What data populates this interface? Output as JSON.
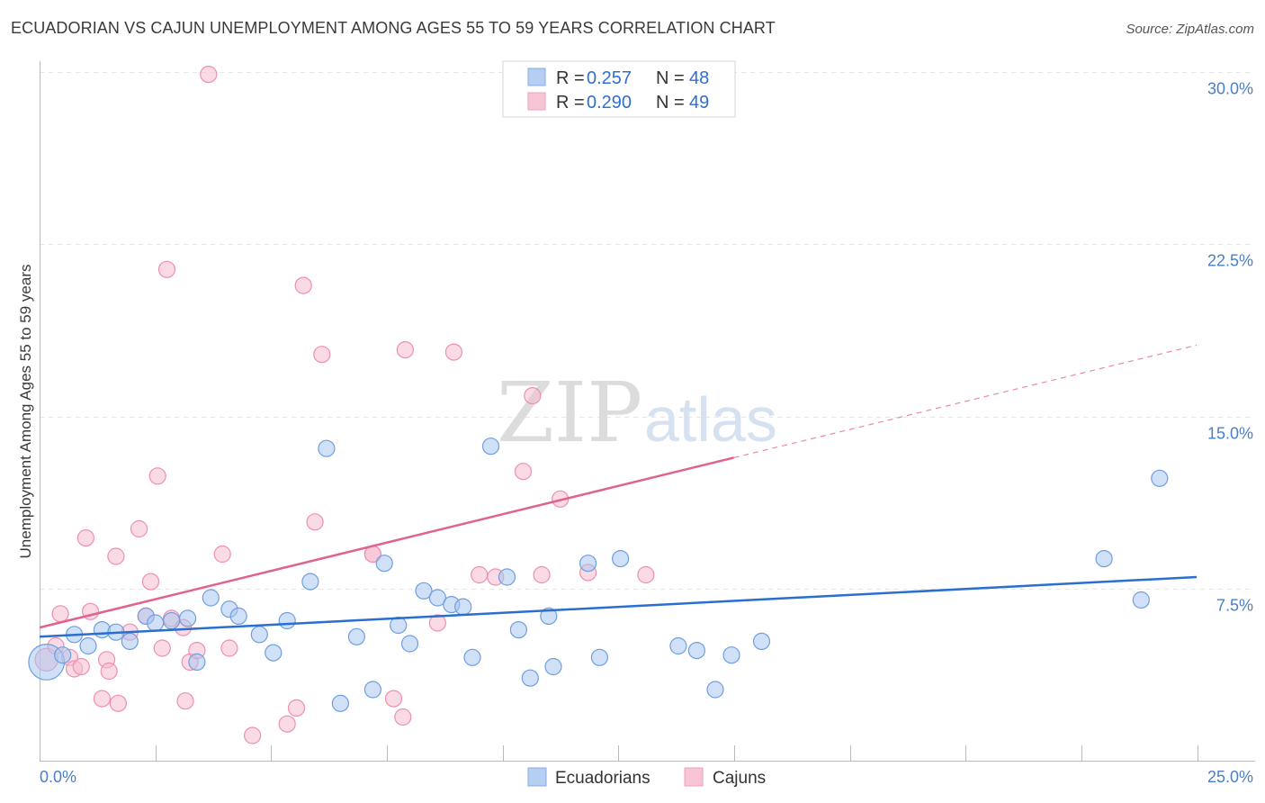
{
  "title": "ECUADORIAN VS CAJUN UNEMPLOYMENT AMONG AGES 55 TO 59 YEARS CORRELATION CHART",
  "source": "Source: ZipAtlas.com",
  "watermark": {
    "zip": "ZIP",
    "atlas": "atlas"
  },
  "legend": {
    "r_label": "R =",
    "n_label": "N =",
    "rows": [
      {
        "r": "0.257",
        "n": "48"
      },
      {
        "r": "0.290",
        "n": "49"
      }
    ]
  },
  "bottom_legend": [
    "Ecuadorians",
    "Cajuns"
  ],
  "colors": {
    "blue_fill": "#a9c6ef",
    "blue_stroke": "#6f9ee0",
    "blue_line": "#2a6fcf",
    "pink_fill": "#f6bcd0",
    "pink_stroke": "#ee8fb0",
    "pink_line": "#e0628f",
    "grid": "#e6e6e6",
    "axis_text": "#4a7fc8"
  },
  "chart_data": {
    "type": "scatter",
    "title": "ECUADORIAN VS CAJUN UNEMPLOYMENT AMONG AGES 55 TO 59 YEARS CORRELATION CHART",
    "xlabel": "",
    "ylabel": "Unemployment Among Ages 55 to 59 years",
    "xlim": [
      0,
      25
    ],
    "ylim": [
      0,
      31
    ],
    "x_tick_labels": [
      "0.0%",
      "25.0%"
    ],
    "y_ticks": [
      7.5,
      15.0,
      22.5,
      30.0
    ],
    "y_tick_labels": [
      "7.5%",
      "15.0%",
      "22.5%",
      "30.0%"
    ],
    "series": [
      {
        "name": "Ecuadorians",
        "r": 0.257,
        "n": 48,
        "trend": {
          "x": [
            0,
            25
          ],
          "y": [
            5.4,
            8.0
          ],
          "dashed_from": null
        },
        "points": [
          [
            0.15,
            4.3,
            2.2
          ],
          [
            0.5,
            4.6,
            1
          ],
          [
            0.75,
            5.5,
            1
          ],
          [
            1.05,
            5.0,
            1
          ],
          [
            1.35,
            5.7,
            1
          ],
          [
            1.65,
            5.6,
            1
          ],
          [
            1.95,
            5.2,
            1
          ],
          [
            2.3,
            6.3,
            1
          ],
          [
            2.5,
            6.0,
            1
          ],
          [
            2.85,
            6.1,
            1
          ],
          [
            3.2,
            6.2,
            1
          ],
          [
            3.4,
            4.3,
            1
          ],
          [
            3.7,
            7.1,
            1
          ],
          [
            4.1,
            6.6,
            1
          ],
          [
            4.3,
            6.3,
            1
          ],
          [
            4.75,
            5.5,
            1
          ],
          [
            5.05,
            4.7,
            1
          ],
          [
            5.35,
            6.1,
            1
          ],
          [
            5.85,
            7.8,
            1
          ],
          [
            6.2,
            13.6,
            1
          ],
          [
            6.5,
            2.5,
            1
          ],
          [
            6.85,
            5.4,
            1
          ],
          [
            7.2,
            3.1,
            1
          ],
          [
            7.45,
            8.6,
            1
          ],
          [
            7.75,
            5.9,
            1
          ],
          [
            8.0,
            5.1,
            1
          ],
          [
            8.3,
            7.4,
            1
          ],
          [
            8.6,
            7.1,
            1
          ],
          [
            8.9,
            6.8,
            1
          ],
          [
            9.15,
            6.7,
            1
          ],
          [
            9.35,
            4.5,
            1
          ],
          [
            9.75,
            13.7,
            1
          ],
          [
            10.1,
            8.0,
            1
          ],
          [
            10.35,
            5.7,
            1
          ],
          [
            10.6,
            3.6,
            1
          ],
          [
            11.0,
            6.3,
            1
          ],
          [
            11.1,
            4.1,
            1
          ],
          [
            11.85,
            8.6,
            1
          ],
          [
            12.1,
            4.5,
            1
          ],
          [
            12.55,
            8.8,
            1
          ],
          [
            13.8,
            5.0,
            1
          ],
          [
            14.2,
            4.8,
            1
          ],
          [
            14.6,
            3.1,
            1
          ],
          [
            14.95,
            4.6,
            1
          ],
          [
            15.6,
            5.2,
            1
          ],
          [
            23.0,
            8.8,
            1
          ],
          [
            23.8,
            7.0,
            1
          ],
          [
            24.2,
            12.3,
            1
          ]
        ]
      },
      {
        "name": "Cajuns",
        "r": 0.29,
        "n": 49,
        "trend": {
          "x": [
            0,
            15.0,
            25
          ],
          "y": [
            5.8,
            13.2,
            18.1
          ],
          "dashed_from": 15.0
        },
        "points": [
          [
            0.15,
            4.4,
            1.4
          ],
          [
            0.35,
            5.0,
            1
          ],
          [
            0.45,
            6.4,
            1
          ],
          [
            0.65,
            4.5,
            1
          ],
          [
            0.75,
            4.0,
            1
          ],
          [
            0.9,
            4.1,
            1
          ],
          [
            1.0,
            9.7,
            1
          ],
          [
            1.1,
            6.5,
            1
          ],
          [
            1.35,
            2.7,
            1
          ],
          [
            1.45,
            4.4,
            1
          ],
          [
            1.5,
            3.9,
            1
          ],
          [
            1.65,
            8.9,
            1
          ],
          [
            1.7,
            2.5,
            1
          ],
          [
            1.95,
            5.6,
            1
          ],
          [
            2.15,
            10.1,
            1
          ],
          [
            2.3,
            6.3,
            1
          ],
          [
            2.4,
            7.8,
            1
          ],
          [
            2.55,
            12.4,
            1
          ],
          [
            2.65,
            4.9,
            1
          ],
          [
            2.75,
            21.4,
            1
          ],
          [
            2.85,
            6.2,
            1
          ],
          [
            3.1,
            5.8,
            1
          ],
          [
            3.15,
            2.6,
            1
          ],
          [
            3.25,
            4.3,
            1
          ],
          [
            3.4,
            4.8,
            1
          ],
          [
            3.65,
            29.9,
            1
          ],
          [
            3.95,
            9.0,
            1
          ],
          [
            4.1,
            4.9,
            1
          ],
          [
            4.6,
            1.1,
            1
          ],
          [
            5.35,
            1.6,
            1
          ],
          [
            5.55,
            2.3,
            1
          ],
          [
            5.7,
            20.7,
            1
          ],
          [
            5.95,
            10.4,
            1
          ],
          [
            6.1,
            17.7,
            1
          ],
          [
            7.2,
            9.0,
            1
          ],
          [
            7.2,
            9.0,
            1
          ],
          [
            7.65,
            2.7,
            1
          ],
          [
            7.85,
            1.9,
            1
          ],
          [
            7.9,
            17.9,
            1
          ],
          [
            8.6,
            6.0,
            1
          ],
          [
            8.95,
            17.8,
            1
          ],
          [
            9.5,
            8.1,
            1
          ],
          [
            9.85,
            8.0,
            1
          ],
          [
            10.45,
            12.6,
            1
          ],
          [
            10.65,
            15.9,
            1
          ],
          [
            10.85,
            8.1,
            1
          ],
          [
            11.25,
            11.4,
            1
          ],
          [
            11.85,
            8.2,
            1
          ],
          [
            13.1,
            8.1,
            1
          ]
        ]
      }
    ]
  }
}
